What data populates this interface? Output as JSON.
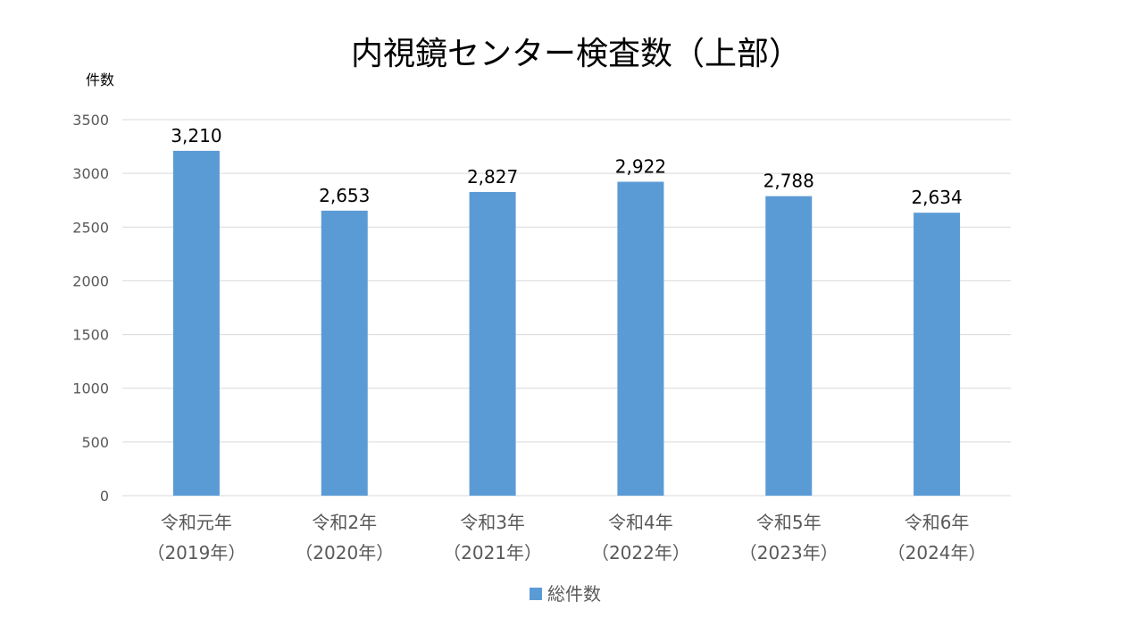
{
  "chart_data": {
    "type": "bar",
    "title": "内視鏡センター検査数（上部）",
    "ylabel": "件数",
    "xlabel": "",
    "categories": [
      [
        "令和元年",
        "（2019年）"
      ],
      [
        "令和2年",
        "（2020年）"
      ],
      [
        "令和3年",
        "（2021年）"
      ],
      [
        "令和4年",
        "（2022年）"
      ],
      [
        "令和5年",
        "（2023年）"
      ],
      [
        "令和6年",
        "（2024年）"
      ]
    ],
    "series": [
      {
        "name": "総件数",
        "values": [
          3210,
          2653,
          2827,
          2922,
          2788,
          2634
        ],
        "labels": [
          "3,210",
          "2,653",
          "2,827",
          "2,922",
          "2,788",
          "2,634"
        ],
        "color": "#5B9BD5"
      }
    ],
    "ylim": [
      0,
      3500
    ],
    "yticks": [
      0,
      500,
      1000,
      1500,
      2000,
      2500,
      3000,
      3500
    ],
    "grid": true,
    "legend": "bottom"
  }
}
